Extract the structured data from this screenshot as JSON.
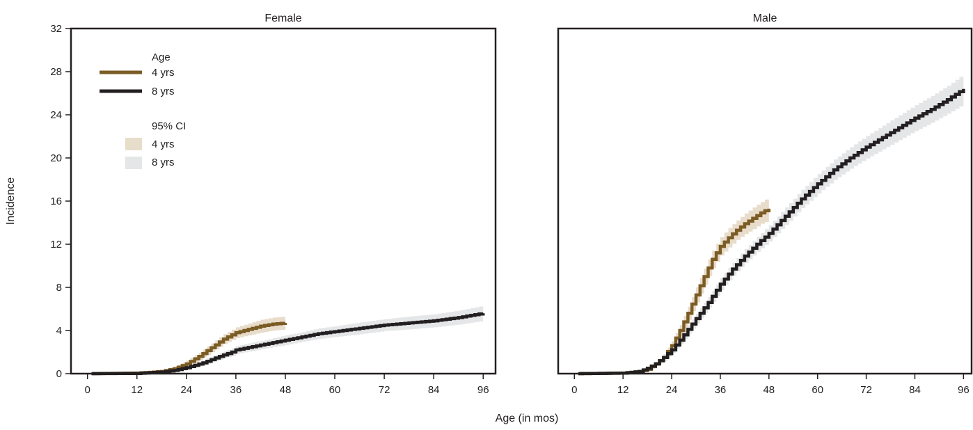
{
  "figure": {
    "ylabel": "Incidence",
    "xlabel": "Age (in mos)"
  },
  "legend": {
    "line_title": "Age",
    "ci_title": "95% CI",
    "entries": [
      {
        "label": "4 yrs",
        "line_color": "#7b5c25",
        "ci_color": "#e8dccb"
      },
      {
        "label": "8 yrs",
        "line_color": "#231f20",
        "ci_color": "#e5e6e7"
      }
    ]
  },
  "chart_data": [
    {
      "type": "line",
      "title": "Female",
      "xlabel": "Age (in mos)",
      "ylabel": "Incidence",
      "xlim": [
        -4,
        99
      ],
      "ylim": [
        0,
        32
      ],
      "xticks": [
        0,
        12,
        24,
        36,
        48,
        60,
        72,
        84,
        96
      ],
      "yticks": [
        0,
        4,
        8,
        12,
        16,
        20,
        24,
        28,
        32
      ],
      "series": [
        {
          "name": "4 yrs",
          "color": "#7b5c25",
          "ci_color": "#e8dccb",
          "x": [
            1,
            12,
            18,
            21,
            24,
            27,
            30,
            33,
            36,
            39,
            42,
            45,
            48
          ],
          "y": [
            0,
            0.05,
            0.2,
            0.45,
            0.9,
            1.6,
            2.4,
            3.2,
            3.8,
            4.1,
            4.4,
            4.6,
            4.7
          ],
          "ci_half": [
            0,
            0.02,
            0.1,
            0.2,
            0.3,
            0.35,
            0.4,
            0.45,
            0.5,
            0.55,
            0.6,
            0.6,
            0.6
          ]
        },
        {
          "name": "8 yrs",
          "color": "#231f20",
          "ci_color": "#e5e6e7",
          "x": [
            1,
            12,
            18,
            21,
            24,
            28,
            32,
            35,
            36,
            40,
            44,
            48,
            52,
            56,
            60,
            66,
            72,
            78,
            84,
            90,
            96
          ],
          "y": [
            0,
            0.02,
            0.15,
            0.3,
            0.55,
            1.0,
            1.6,
            2.0,
            2.2,
            2.5,
            2.8,
            3.1,
            3.4,
            3.7,
            3.9,
            4.2,
            4.5,
            4.7,
            4.9,
            5.2,
            5.6
          ],
          "ci_half": [
            0,
            0.02,
            0.08,
            0.12,
            0.2,
            0.25,
            0.3,
            0.35,
            0.35,
            0.4,
            0.4,
            0.45,
            0.45,
            0.5,
            0.5,
            0.55,
            0.55,
            0.6,
            0.6,
            0.65,
            0.7
          ]
        }
      ]
    },
    {
      "type": "line",
      "title": "Male",
      "xlabel": "Age (in mos)",
      "ylabel": "Incidence",
      "xlim": [
        -4,
        98
      ],
      "ylim": [
        0,
        32
      ],
      "xticks": [
        0,
        12,
        24,
        36,
        48,
        60,
        72,
        84,
        96
      ],
      "yticks": [
        0,
        4,
        8,
        12,
        16,
        20,
        24,
        28,
        32
      ],
      "series": [
        {
          "name": "4 yrs",
          "color": "#7b5c25",
          "ci_color": "#e8dccb",
          "x": [
            1,
            12,
            16,
            18,
            20,
            22,
            24,
            26,
            28,
            30,
            32,
            34,
            36,
            38,
            40,
            42,
            44,
            46,
            48
          ],
          "y": [
            0,
            0.05,
            0.2,
            0.4,
            0.9,
            1.5,
            2.6,
            4.0,
            5.6,
            7.3,
            9.0,
            10.6,
            11.8,
            12.6,
            13.3,
            13.9,
            14.4,
            14.9,
            15.3
          ],
          "ci_half": [
            0,
            0.03,
            0.1,
            0.15,
            0.2,
            0.3,
            0.4,
            0.5,
            0.6,
            0.7,
            0.75,
            0.8,
            0.85,
            0.9,
            0.9,
            0.95,
            1.0,
            1.0,
            1.1
          ]
        },
        {
          "name": "8 yrs",
          "color": "#231f20",
          "ci_color": "#e5e6e7",
          "x": [
            1,
            12,
            16,
            18,
            20,
            22,
            24,
            26,
            28,
            30,
            33,
            36,
            39,
            42,
            45,
            48,
            52,
            56,
            60,
            64,
            68,
            72,
            76,
            80,
            84,
            88,
            92,
            96
          ],
          "y": [
            0,
            0.05,
            0.2,
            0.5,
            0.9,
            1.5,
            2.2,
            3.1,
            4.1,
            5.1,
            6.6,
            8.3,
            9.7,
            10.9,
            12.0,
            13.0,
            14.6,
            16.2,
            17.6,
            18.9,
            20.0,
            21.0,
            21.9,
            22.8,
            23.7,
            24.5,
            25.4,
            26.4
          ],
          "ci_half": [
            0,
            0.03,
            0.08,
            0.12,
            0.18,
            0.25,
            0.3,
            0.35,
            0.4,
            0.45,
            0.5,
            0.55,
            0.6,
            0.65,
            0.7,
            0.75,
            0.8,
            0.85,
            0.9,
            0.95,
            1.0,
            1.05,
            1.1,
            1.15,
            1.2,
            1.25,
            1.3,
            1.4
          ]
        }
      ]
    }
  ]
}
